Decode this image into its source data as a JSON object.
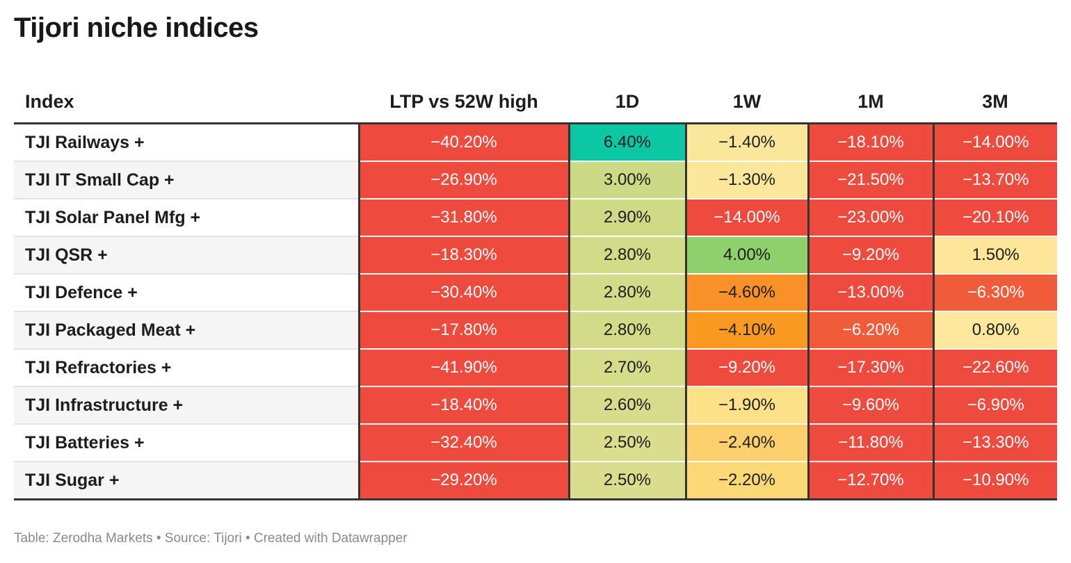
{
  "title": "Tijori niche indices",
  "columns": [
    "Index",
    "LTP vs 52W high",
    "1D",
    "1W",
    "1M",
    "3M"
  ],
  "footer": "Table: Zerodha Markets • Source: Tijori • Created with Datawrapper",
  "colors": {
    "red": "#ee4a3e",
    "teal": "#0bc7a3",
    "green": "#8fd06c",
    "olive": "#ccd985",
    "light_olive": "#dadd8e",
    "pale_yellow": "#fbe79b",
    "yellow": "#fdde86",
    "amber": "#fecf6d",
    "orange": "#fa9028",
    "deep_orange": "#fb9a20",
    "red_orange": "#f05b3a"
  },
  "chart_data": {
    "type": "table",
    "title": "Tijori niche indices",
    "columns": [
      "Index",
      "LTP vs 52W high",
      "1D",
      "1W",
      "1M",
      "3M"
    ],
    "rows": [
      {
        "name": "TJI Railways +",
        "values": [
          "−40.20%",
          "6.40%",
          "−1.40%",
          "−18.10%",
          "−14.00%"
        ],
        "colors": [
          "#ee4a3e",
          "#0bc7a3",
          "#fbe79b",
          "#ee4a3e",
          "#ee4a3e"
        ]
      },
      {
        "name": "TJI IT Small Cap +",
        "values": [
          "−26.90%",
          "3.00%",
          "−1.30%",
          "−21.50%",
          "−13.70%"
        ],
        "colors": [
          "#ee4a3e",
          "#ccd985",
          "#fbe79b",
          "#ee4a3e",
          "#ee4a3e"
        ]
      },
      {
        "name": "TJI Solar Panel Mfg +",
        "values": [
          "−31.80%",
          "2.90%",
          "−14.00%",
          "−23.00%",
          "−20.10%"
        ],
        "colors": [
          "#ee4a3e",
          "#cfda86",
          "#ee4a3e",
          "#ee4a3e",
          "#ee4a3e"
        ]
      },
      {
        "name": "TJI QSR +",
        "values": [
          "−18.30%",
          "2.80%",
          "4.00%",
          "−9.20%",
          "1.50%"
        ],
        "colors": [
          "#ee4a3e",
          "#d2db88",
          "#8fd06c",
          "#ee4a3e",
          "#fde69a"
        ]
      },
      {
        "name": "TJI Defence +",
        "values": [
          "−30.40%",
          "2.80%",
          "−4.60%",
          "−13.00%",
          "−6.30%"
        ],
        "colors": [
          "#ee4a3e",
          "#d2db88",
          "#fa9028",
          "#ee4a3e",
          "#f05b3a"
        ]
      },
      {
        "name": "TJI Packaged Meat +",
        "values": [
          "−17.80%",
          "2.80%",
          "−4.10%",
          "−6.20%",
          "0.80%"
        ],
        "colors": [
          "#ee4a3e",
          "#d2db88",
          "#fb9a20",
          "#f05b3a",
          "#fde89e"
        ]
      },
      {
        "name": "TJI Refractories +",
        "values": [
          "−41.90%",
          "2.70%",
          "−9.20%",
          "−17.30%",
          "−22.60%"
        ],
        "colors": [
          "#ee4a3e",
          "#d5dc8a",
          "#ee4a3e",
          "#ee4a3e",
          "#ee4a3e"
        ]
      },
      {
        "name": "TJI Infrastructure +",
        "values": [
          "−18.40%",
          "2.60%",
          "−1.90%",
          "−9.60%",
          "−6.90%"
        ],
        "colors": [
          "#ee4a3e",
          "#d7dc8c",
          "#fde188",
          "#ee4a3e",
          "#ee4a3e"
        ]
      },
      {
        "name": "TJI Batteries +",
        "values": [
          "−32.40%",
          "2.50%",
          "−2.40%",
          "−11.80%",
          "−13.30%"
        ],
        "colors": [
          "#ee4a3e",
          "#dadd8e",
          "#fecf6d",
          "#ee4a3e",
          "#ee4a3e"
        ]
      },
      {
        "name": "TJI Sugar +",
        "values": [
          "−29.20%",
          "2.50%",
          "−2.20%",
          "−12.70%",
          "−10.90%"
        ],
        "colors": [
          "#ee4a3e",
          "#dadd8e",
          "#fdd877",
          "#ee4a3e",
          "#ee4a3e"
        ]
      }
    ]
  }
}
